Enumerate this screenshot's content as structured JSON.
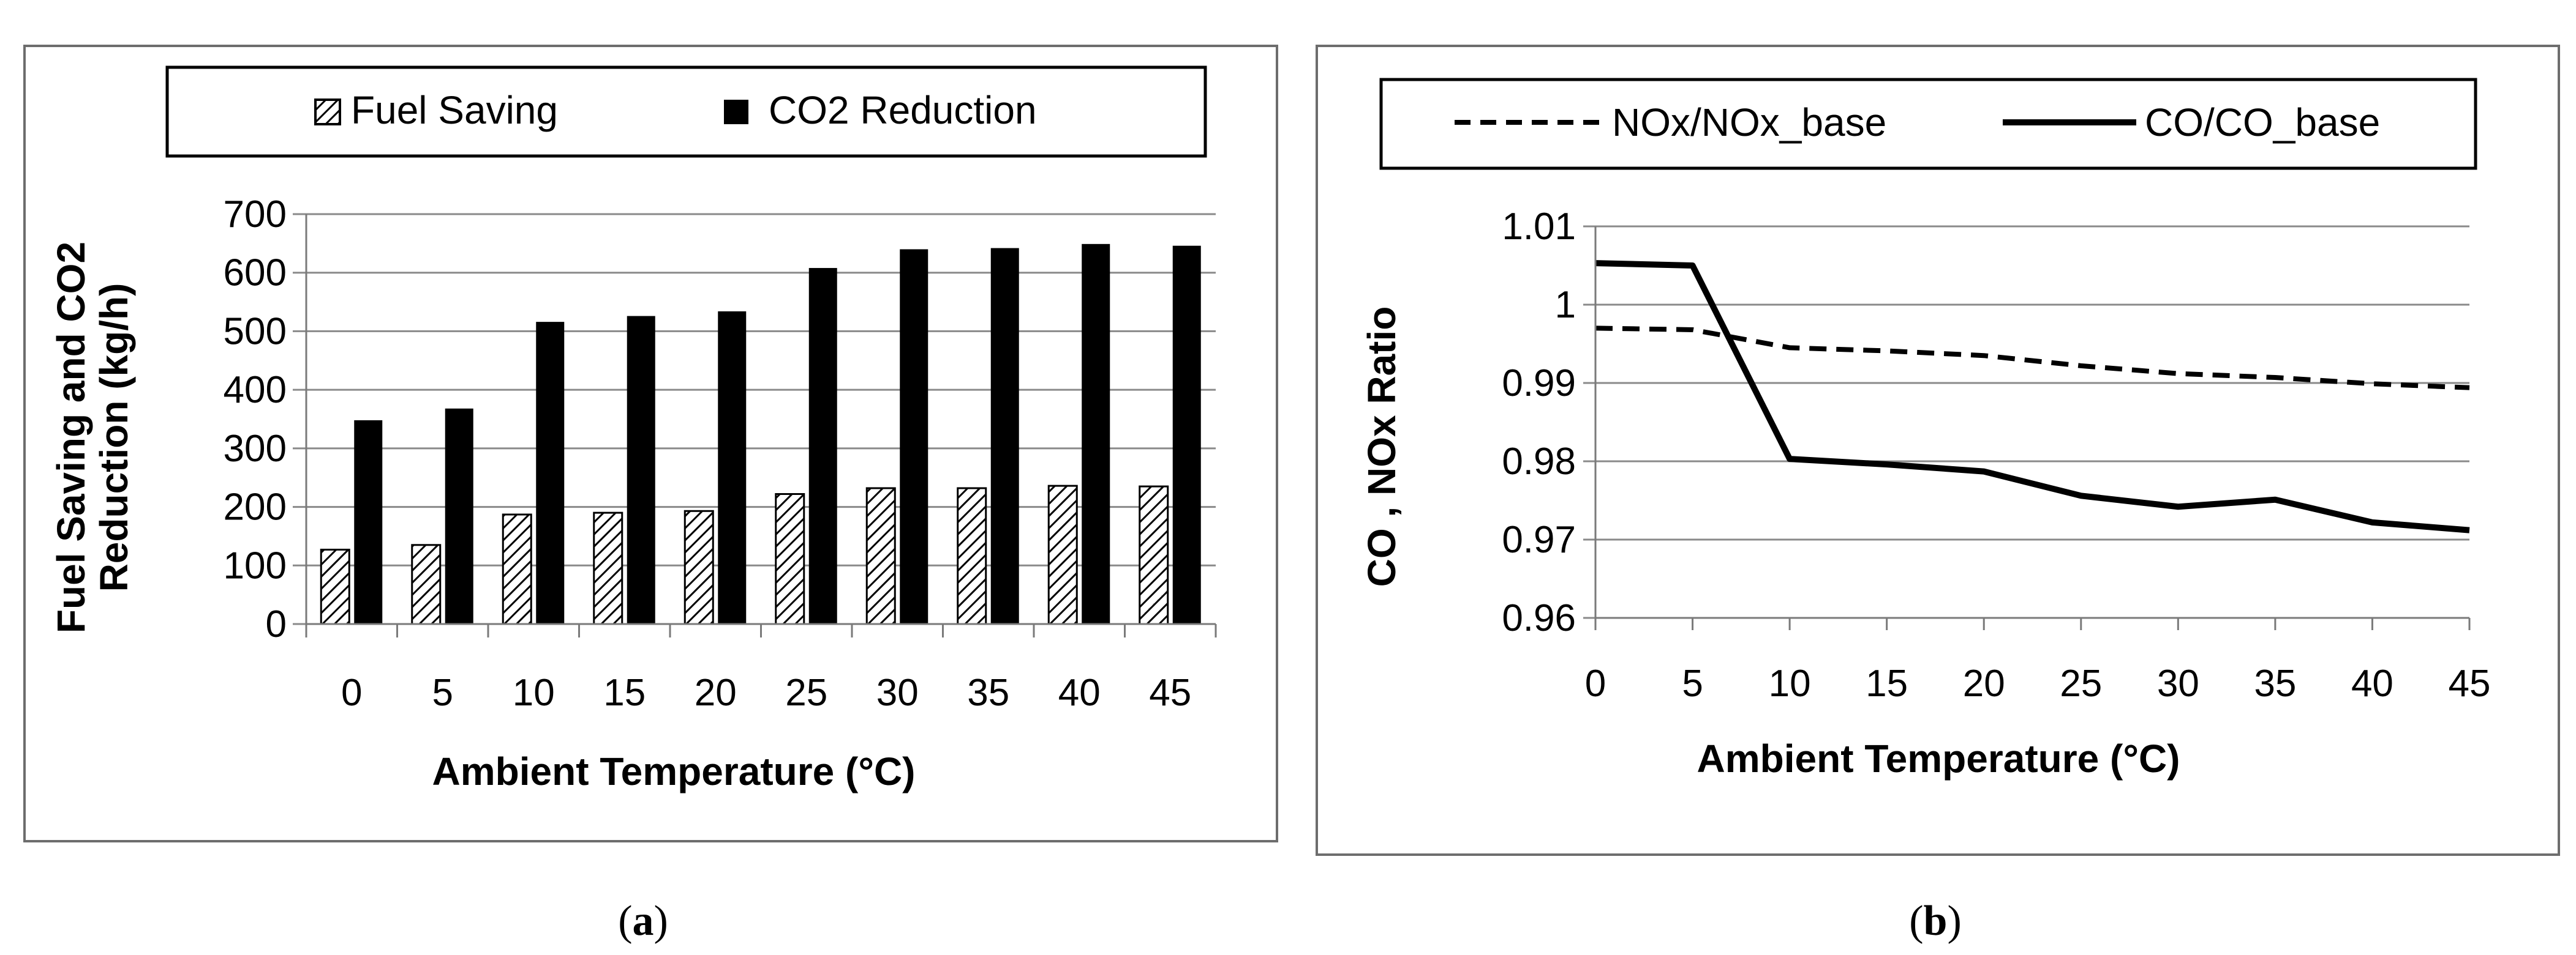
{
  "chart_data": [
    {
      "type": "bar",
      "panel_label": "a",
      "caption_open": "(",
      "caption_close": ")",
      "xlabel": "Ambient Temperature (°C)",
      "ylabel_line1": "Fuel Saving and CO2",
      "ylabel_line2": "Reduction (kg/h)",
      "ylim": [
        0,
        700
      ],
      "yticks": [
        0,
        100,
        200,
        300,
        400,
        500,
        600,
        700
      ],
      "categories": [
        "0",
        "5",
        "10",
        "15",
        "20",
        "25",
        "30",
        "35",
        "40",
        "45"
      ],
      "series": [
        {
          "name": "Fuel Saving",
          "pattern": "hatched",
          "values": [
            127,
            135,
            187,
            190,
            193,
            222,
            232,
            232,
            236,
            235
          ]
        },
        {
          "name": "CO2 Reduction",
          "pattern": "solid",
          "color": "#000000",
          "values": [
            348,
            368,
            516,
            526,
            534,
            608,
            640,
            642,
            649,
            646
          ]
        }
      ],
      "legend_position": "top"
    },
    {
      "type": "line",
      "panel_label": "b",
      "caption_open": "(",
      "caption_close": ")",
      "xlabel": "Ambient Temperature (°C)",
      "ylabel": "CO , NOx Ratio",
      "ylim": [
        0.96,
        1.01
      ],
      "yticks": [
        "0.96",
        "0.97",
        "0.98",
        "0.99",
        "1",
        "1.01"
      ],
      "x": [
        0,
        5,
        10,
        15,
        20,
        25,
        30,
        35,
        40,
        45
      ],
      "xticks": [
        "0",
        "5",
        "10",
        "15",
        "20",
        "25",
        "30",
        "35",
        "40",
        "45"
      ],
      "series": [
        {
          "name": "NOx/NOx_base",
          "style": "dashed",
          "values": [
            0.997,
            0.9968,
            0.9945,
            0.9941,
            0.9935,
            0.9922,
            0.9912,
            0.9907,
            0.9899,
            0.9894
          ]
        },
        {
          "name": "CO/CO_base",
          "style": "solid",
          "values": [
            1.0053,
            1.005,
            0.9803,
            0.9796,
            0.9787,
            0.9756,
            0.9742,
            0.9751,
            0.9722,
            0.9712
          ]
        }
      ],
      "legend_position": "top"
    }
  ]
}
